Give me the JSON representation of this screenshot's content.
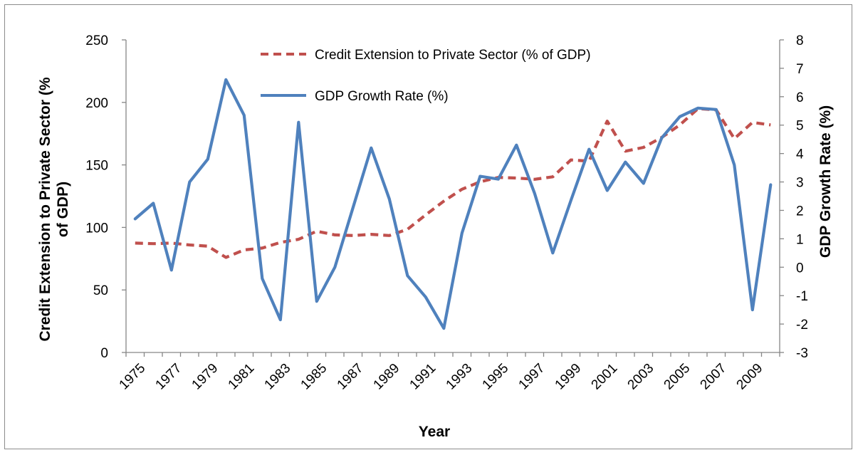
{
  "chart_data": {
    "type": "line",
    "x": [
      1975,
      1976,
      1977,
      1978,
      1979,
      1980,
      1981,
      1982,
      1983,
      1984,
      1985,
      1986,
      1987,
      1988,
      1989,
      1990,
      1991,
      1992,
      1993,
      1994,
      1995,
      1996,
      1997,
      1998,
      1999,
      2000,
      2001,
      2002,
      2003,
      2004,
      2005,
      2006,
      2007,
      2008,
      2009,
      2010
    ],
    "x_tick_labels": [
      "1975",
      "1977",
      "1979",
      "1981",
      "1983",
      "1985",
      "1987",
      "1989",
      "1991",
      "1993",
      "1995",
      "1997",
      "1999",
      "2001",
      "2003",
      "2005",
      "2007",
      "2009"
    ],
    "xlabel": "Year",
    "ylabel_left": "Credit Extension to Private Sector (% of GDP)",
    "ylabel_right": "GDP Growth Rate (%)",
    "ylim_left": [
      0,
      250
    ],
    "yticks_left": [
      "0",
      "50",
      "100",
      "150",
      "200",
      "250"
    ],
    "ylim_right": [
      -3,
      8
    ],
    "yticks_right": [
      "-3",
      "-2",
      "-1",
      "0",
      "1",
      "2",
      "3",
      "4",
      "5",
      "6",
      "7",
      "8"
    ],
    "grid": false,
    "legend_position": "top-center",
    "series": [
      {
        "name": "Credit Extension to Private Sector (% of GDP)",
        "axis": "left",
        "style": "dashed",
        "color": "#C0504D",
        "values": [
          87.5,
          87,
          87.5,
          86,
          85,
          76,
          82,
          83.5,
          88,
          90.5,
          97,
          94,
          93.5,
          94.5,
          93.5,
          98.5,
          110,
          121,
          130.5,
          136.5,
          140,
          139.5,
          138.5,
          140.5,
          154,
          153,
          185,
          161,
          164,
          172,
          182,
          195,
          194,
          171,
          184,
          182
        ]
      },
      {
        "name": "GDP Growth Rate (%)",
        "axis": "right",
        "style": "solid",
        "color": "#4F81BD",
        "values": [
          1.7,
          2.25,
          -0.1,
          3.0,
          3.8,
          6.6,
          5.35,
          -0.4,
          -1.85,
          5.1,
          -1.2,
          0.0,
          2.1,
          4.2,
          2.4,
          -0.3,
          -1.05,
          -2.15,
          1.2,
          3.2,
          3.1,
          4.3,
          2.6,
          0.5,
          2.35,
          4.15,
          2.7,
          3.7,
          2.95,
          4.55,
          5.3,
          5.6,
          5.55,
          3.6,
          -1.5,
          2.9
        ]
      }
    ]
  },
  "colors": {
    "credit": "#C0504D",
    "gdp": "#4F81BD",
    "axis": "#868686",
    "frame": "#8c8c8c"
  }
}
